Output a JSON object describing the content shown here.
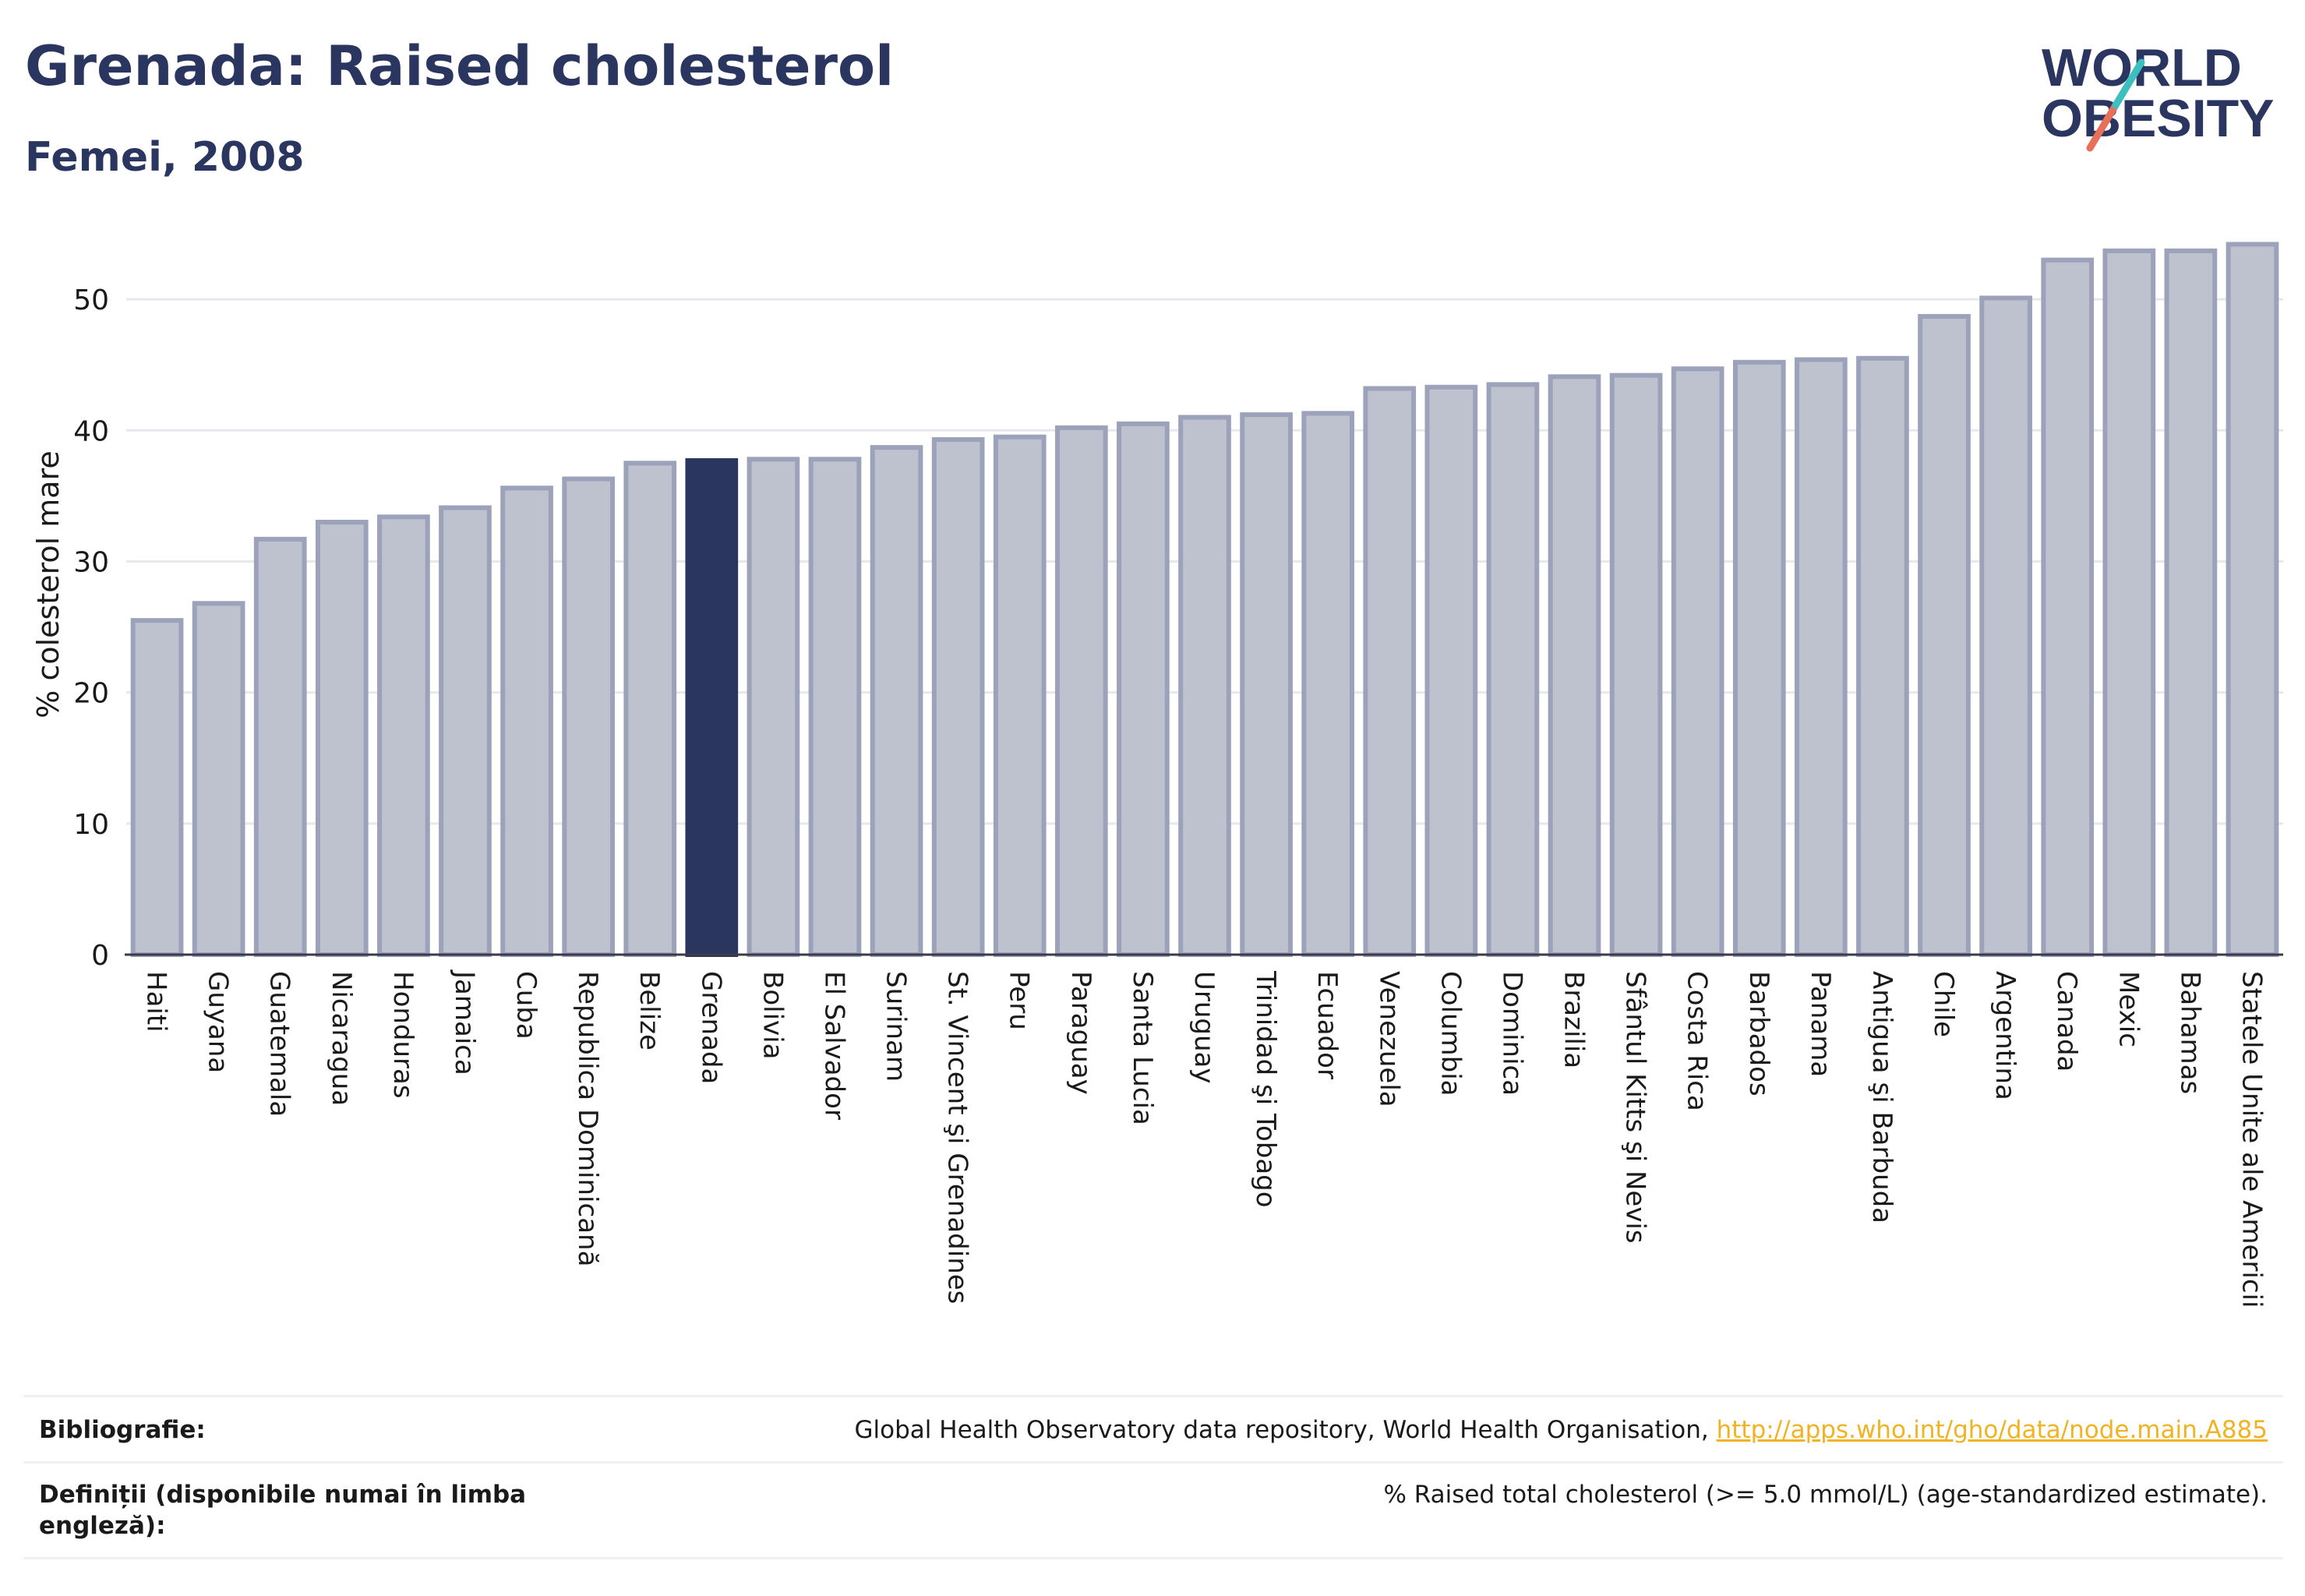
{
  "header": {
    "title": "Grenada: Raised cholesterol",
    "subtitle": "Femei, 2008"
  },
  "logo": {
    "line1": "WORLD",
    "line2": "OBESITY",
    "colors": {
      "text": "#2a3560",
      "slash_top": "#3bbfbf",
      "slash_bottom": "#e8705a"
    }
  },
  "colors": {
    "bar_fill": "#bec2cf",
    "bar_stroke": "#9ca2b9",
    "highlight_fill": "#2a3560",
    "grid": "#e6e8ee",
    "axis": "#3a3a4a"
  },
  "chart_data": {
    "type": "bar",
    "title": "Grenada: Raised cholesterol",
    "subtitle": "Femei, 2008",
    "ylabel": "% colesterol mare",
    "xlabel": "",
    "ylim": [
      0,
      55
    ],
    "yticks": [
      0,
      10,
      20,
      30,
      40,
      50
    ],
    "grid": true,
    "highlight": "Grenada",
    "categories": [
      "Haiti",
      "Guyana",
      "Guatemala",
      "Nicaragua",
      "Honduras",
      "Jamaica",
      "Cuba",
      "Republica Dominicană",
      "Belize",
      "Grenada",
      "Bolivia",
      "El Salvador",
      "Surinam",
      "St. Vincent şi Grenadines",
      "Peru",
      "Paraguay",
      "Santa Lucia",
      "Uruguay",
      "Trinidad şi Tobago",
      "Ecuador",
      "Venezuela",
      "Columbia",
      "Dominica",
      "Brazilia",
      "Sfântul Kitts şi Nevis",
      "Costa Rica",
      "Barbados",
      "Panama",
      "Antigua şi Barbuda",
      "Chile",
      "Argentina",
      "Canada",
      "Mexic",
      "Bahamas",
      "Statele Unite ale Americii"
    ],
    "values": [
      25.5,
      26.8,
      31.7,
      33.0,
      33.4,
      34.1,
      35.6,
      36.3,
      37.5,
      37.7,
      37.8,
      37.8,
      38.7,
      39.3,
      39.5,
      40.2,
      40.5,
      41.0,
      41.2,
      41.3,
      43.2,
      43.3,
      43.5,
      44.1,
      44.2,
      44.7,
      45.2,
      45.4,
      45.5,
      48.7,
      50.1,
      53.0,
      53.7,
      53.7,
      54.2
    ]
  },
  "footer": {
    "bibliography_label": "Bibliografie:",
    "bibliography_text": "Global Health Observatory data repository, World Health Organisation,",
    "bibliography_link": "http://apps.who.int/gho/data/node.main.A885",
    "definitions_label_line1": "Definiții (disponibile numai în limba",
    "definitions_label_line2": "engleză):",
    "definitions_text": "% Raised total cholesterol (>= 5.0 mmol/L) (age-standardized estimate)."
  }
}
